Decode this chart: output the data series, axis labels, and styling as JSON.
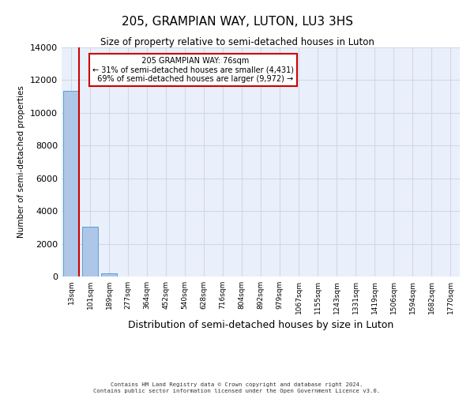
{
  "title": "205, GRAMPIAN WAY, LUTON, LU3 3HS",
  "subtitle": "Size of property relative to semi-detached houses in Luton",
  "xlabel": "Distribution of semi-detached houses by size in Luton",
  "ylabel": "Number of semi-detached properties",
  "bar_color": "#aec6e8",
  "bar_edge_color": "#5a9fd4",
  "categories": [
    "13sqm",
    "101sqm",
    "189sqm",
    "277sqm",
    "364sqm",
    "452sqm",
    "540sqm",
    "628sqm",
    "716sqm",
    "804sqm",
    "892sqm",
    "979sqm",
    "1067sqm",
    "1155sqm",
    "1243sqm",
    "1331sqm",
    "1419sqm",
    "1506sqm",
    "1594sqm",
    "1682sqm",
    "1770sqm"
  ],
  "values": [
    11350,
    3020,
    195,
    12,
    2,
    1,
    0,
    0,
    0,
    0,
    0,
    0,
    0,
    0,
    0,
    0,
    0,
    0,
    0,
    0,
    0
  ],
  "ylim": [
    0,
    14000
  ],
  "yticks": [
    0,
    2000,
    4000,
    6000,
    8000,
    10000,
    12000,
    14000
  ],
  "property_label": "205 GRAMPIAN WAY: 76sqm",
  "pct_smaller": 31,
  "num_smaller": 4431,
  "pct_larger": 69,
  "num_larger": 9972,
  "annotation_box_color": "#ffffff",
  "annotation_box_edge_color": "#cc0000",
  "grid_color": "#d0d8e8",
  "background_color": "#eaf0fb",
  "footer_line1": "Contains HM Land Registry data © Crown copyright and database right 2024.",
  "footer_line2": "Contains public sector information licensed under the Open Government Licence v3.0."
}
